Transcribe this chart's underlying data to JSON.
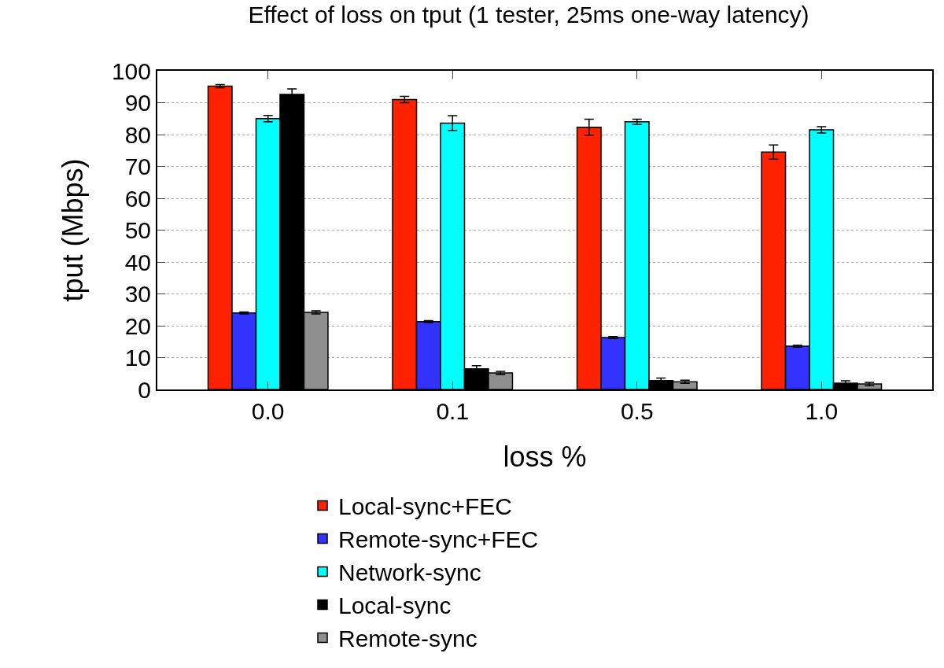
{
  "chart_data": {
    "type": "bar",
    "title": "Effect of loss on tput (1 tester, 25ms one-way latency)",
    "xlabel": "loss %",
    "ylabel": "tput (Mbps)",
    "categories": [
      "0.0",
      "0.1",
      "0.5",
      "1.0"
    ],
    "series": [
      {
        "name": "Local-sync+FEC",
        "color": "#ff2200",
        "values": [
          95.2,
          91,
          82.3,
          74.5
        ],
        "errors": [
          0.5,
          1,
          2.5,
          2.2
        ]
      },
      {
        "name": "Remote-sync+FEC",
        "color": "#3333ff",
        "values": [
          24,
          21.3,
          16.3,
          13.6
        ],
        "errors": [
          0.3,
          0.3,
          0.3,
          0.3
        ]
      },
      {
        "name": "Network-sync",
        "color": "#00ffff",
        "values": [
          85,
          83.6,
          84,
          81.5
        ],
        "errors": [
          1,
          2.3,
          0.8,
          1
        ]
      },
      {
        "name": "Local-sync",
        "color": "#000000",
        "values": [
          92.6,
          6.5,
          2.8,
          2.0
        ],
        "errors": [
          1.7,
          1,
          0.8,
          0.7
        ]
      },
      {
        "name": "Remote-sync",
        "color": "#8f8f8f",
        "values": [
          24.2,
          5.2,
          2.4,
          1.7
        ],
        "errors": [
          0.5,
          0.5,
          0.5,
          0.5
        ]
      }
    ],
    "ylim": [
      0,
      100
    ],
    "yticks": [
      0,
      10,
      20,
      30,
      40,
      50,
      60,
      70,
      80,
      90,
      100
    ],
    "grid": "y",
    "legend": "bottom"
  }
}
